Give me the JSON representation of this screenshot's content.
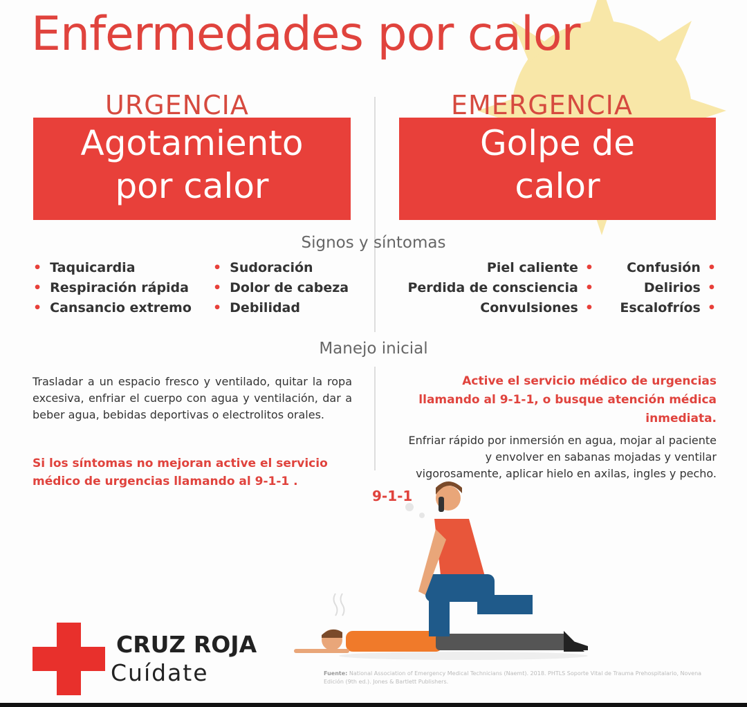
{
  "title": "Enfermedades por calor",
  "left": {
    "category": "URGENCIA",
    "box_line1": "Agotamiento",
    "box_line2": "por calor",
    "symptoms_col1": [
      "Taquicardia",
      "Respiración rápida",
      "Cansancio extremo"
    ],
    "symptoms_col2": [
      "Sudoración",
      "Dolor de cabeza",
      "Debilidad"
    ],
    "management": "Trasladar a un espacio fresco y ventilado, quitar la ropa excesiva, enfriar el cuerpo con agua y ventilación, dar a beber agua, bebidas deportivas o electrolitos orales.",
    "warning": "Si los síntomas no mejoran active el servicio médico de urgencias llamando al 9-1-1 ."
  },
  "right": {
    "category": "EMERGENCIA",
    "box_line1": "Golpe de",
    "box_line2": "calor",
    "symptoms_col1": [
      "Piel caliente",
      "Perdida de consciencia",
      "Convulsiones"
    ],
    "symptoms_col2": [
      "Confusión",
      "Delirios",
      "Escalofríos"
    ],
    "warning": "Active el servicio médico de urgencias llamando al 9-1-1, o busque atención médica inmediata.",
    "management": "Enfriar rápido por inmersión en agua, mojar al paciente y envolver en sabanas mojadas y ventilar vigorosamente, aplicar hielo en axilas, ingles y pecho."
  },
  "sections": {
    "signs": "Signos y síntomas",
    "management": "Manejo inicial"
  },
  "illustration": {
    "phone_bubble": "9-1-1"
  },
  "brand": {
    "name": "CRUZ ROJA",
    "tagline": "Cuídate"
  },
  "source": {
    "label": "Fuente:",
    "text": "National Association of Emergency Medical Technicians (Naemt). 2018. PHTLS Soporte Vital de Trauma Prehospitalario, Novena Edición (9th ed.). Jones & Bartlett Publishers."
  },
  "colors": {
    "accent_red": "#e8403a",
    "sun_yellow": "#f7e4a0"
  }
}
